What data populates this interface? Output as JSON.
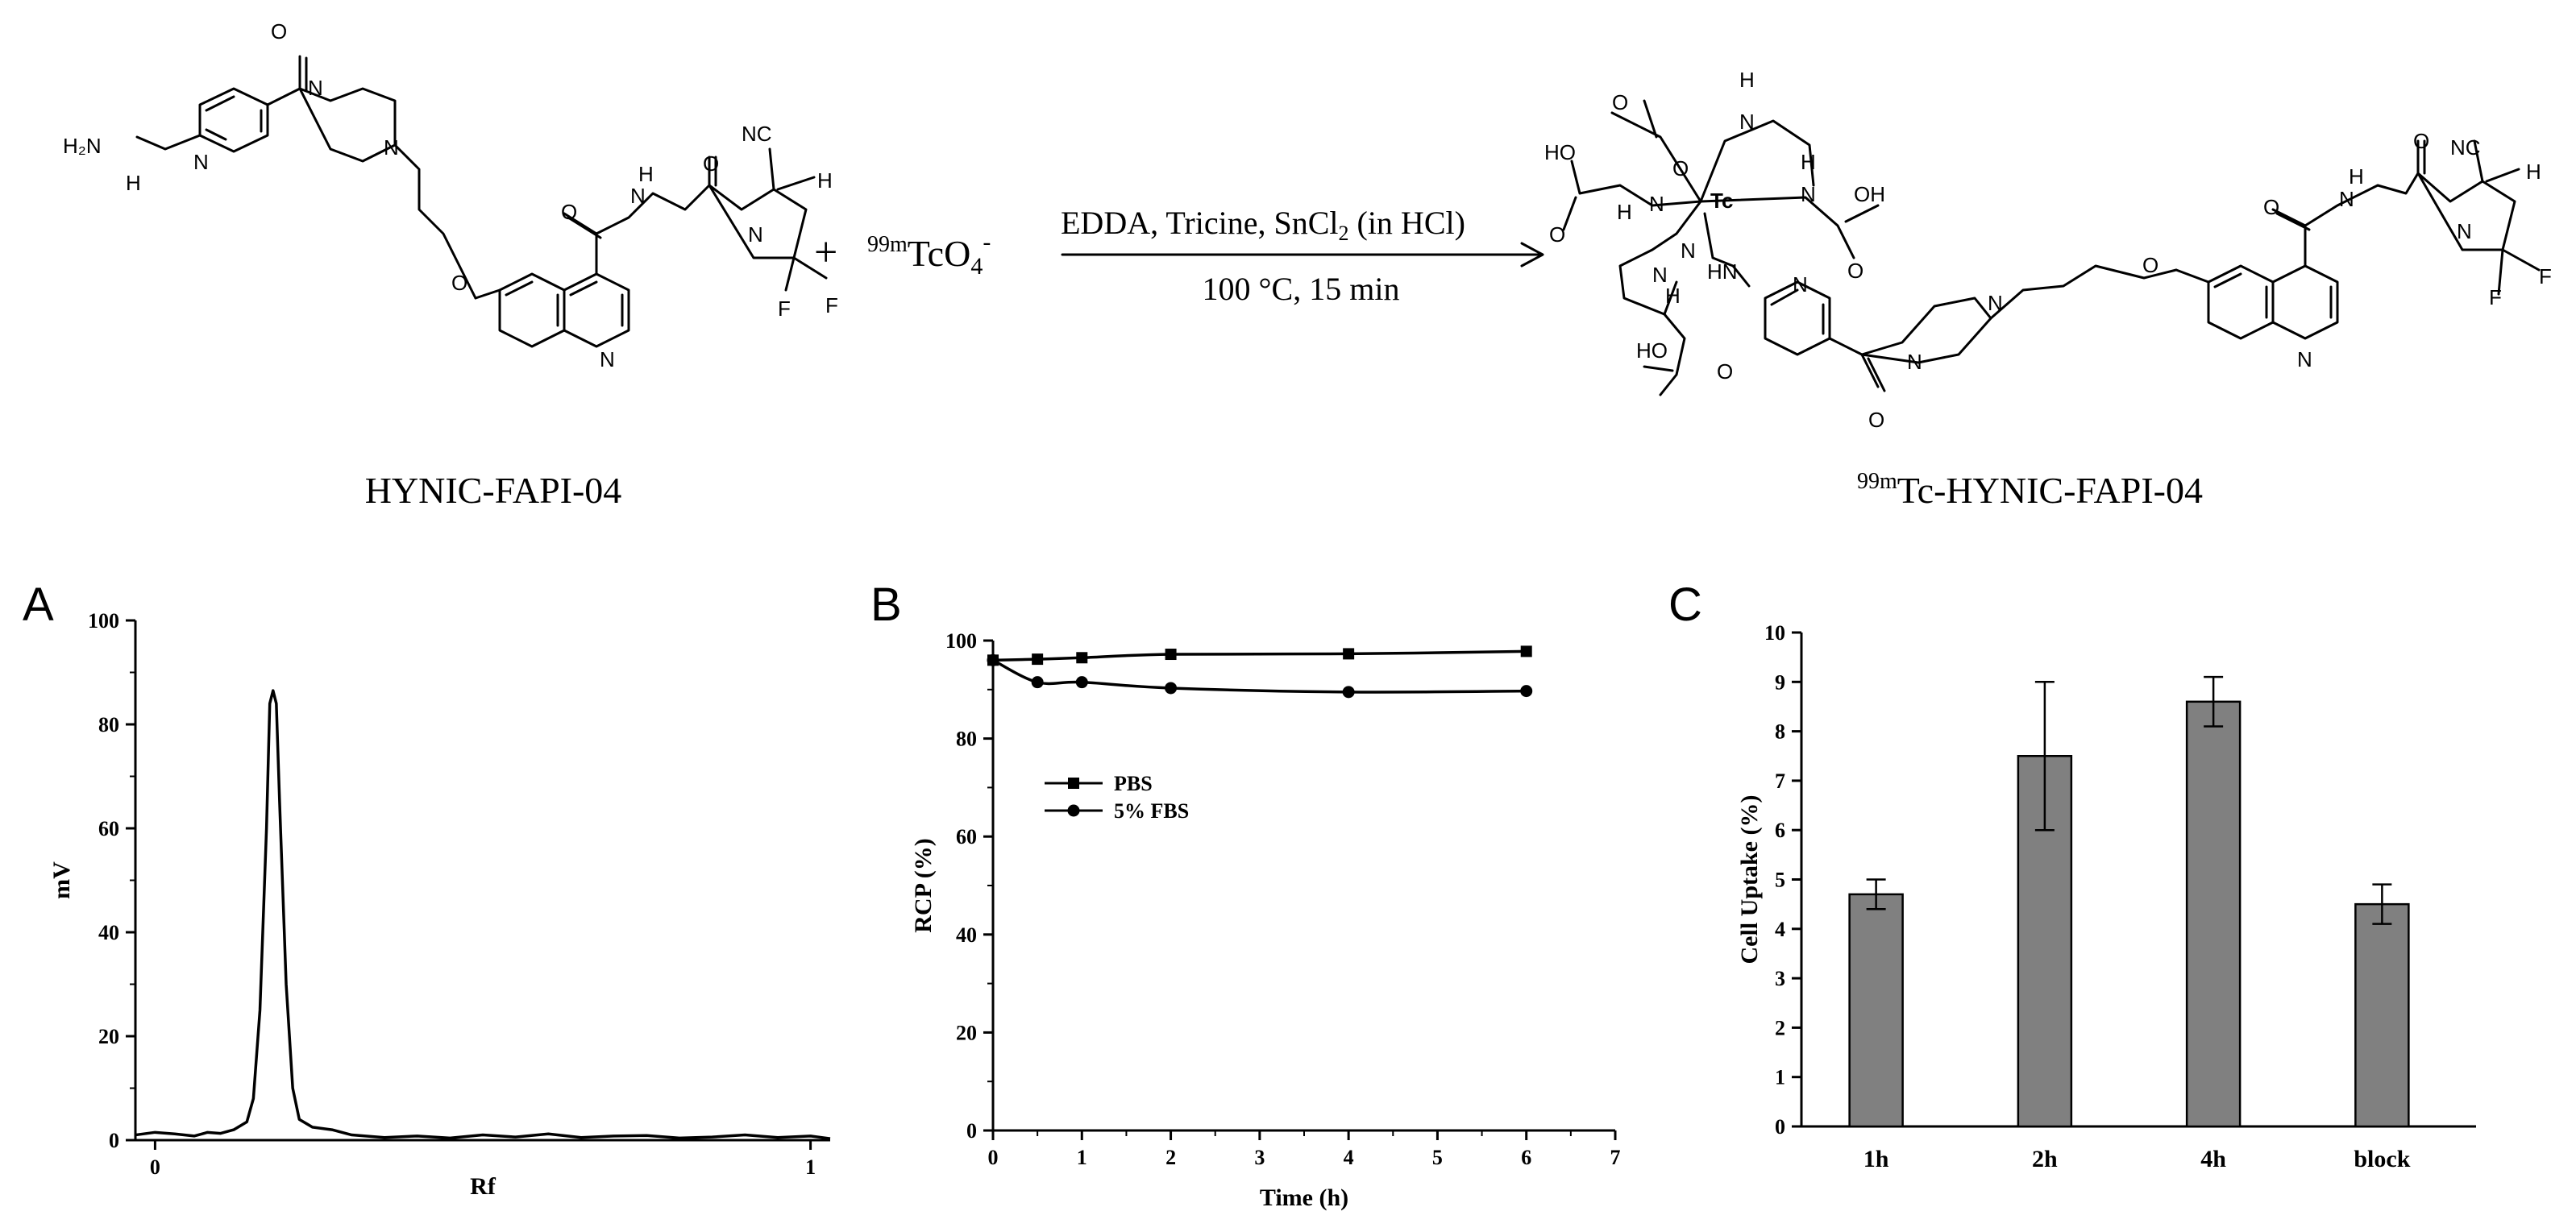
{
  "scheme": {
    "reactant_label": "HYNIC-FAPI-04",
    "reagent": {
      "mass": "99m",
      "formula_main": "TcO",
      "formula_sub": "4",
      "charge": "-"
    },
    "plus_sign": "+",
    "conditions_top": {
      "prefix": "EDDA, Tricine, SnCl",
      "sub": "2",
      "suffix": " (in HCl)"
    },
    "conditions_bottom": "100 °C, 15 min",
    "product_label": {
      "mass": "99m",
      "name": "Tc-HYNIC-FAPI-04"
    },
    "atoms": {
      "h2n": "H₂N",
      "n": "N",
      "h": "H",
      "o": "O",
      "f": "F",
      "nc": "NC",
      "tc": "Tc",
      "ho": "HO",
      "oh": "OH",
      "hn": "HN"
    }
  },
  "chart_data": [
    {
      "panel": "A",
      "type": "line",
      "title": "",
      "xlabel": "Rf",
      "ylabel": "mV",
      "xlim": [
        -0.03,
        1.03
      ],
      "ylim": [
        0,
        100
      ],
      "xticks": [
        0,
        1
      ],
      "yticks": [
        0,
        20,
        40,
        60,
        80,
        100
      ],
      "series": [
        {
          "x": [
            -0.03,
            0.0,
            0.03,
            0.06,
            0.08,
            0.1,
            0.12,
            0.14,
            0.15,
            0.16,
            0.17,
            0.175,
            0.18,
            0.185,
            0.19,
            0.2,
            0.21,
            0.22,
            0.24,
            0.27,
            0.3,
            0.35,
            0.4,
            0.45,
            0.5,
            0.55,
            0.6,
            0.65,
            0.7,
            0.75,
            0.8,
            0.85,
            0.9,
            0.95,
            1.0,
            1.03
          ],
          "y": [
            1,
            1.5,
            1.2,
            0.8,
            1.5,
            1.3,
            2.0,
            3.5,
            8,
            25,
            60,
            84,
            86.5,
            84,
            65,
            30,
            10,
            4,
            2.5,
            2.0,
            1.0,
            0.5,
            0.8,
            0.4,
            1.0,
            0.6,
            1.2,
            0.5,
            0.8,
            0.9,
            0.4,
            0.6,
            1.0,
            0.5,
            0.8,
            0.3
          ]
        }
      ]
    },
    {
      "panel": "B",
      "type": "line",
      "title": "",
      "xlabel": "Time (h)",
      "ylabel": "RCP (%)",
      "xlim": [
        0,
        7
      ],
      "ylim": [
        0,
        100
      ],
      "xticks": [
        0,
        1,
        2,
        3,
        4,
        5,
        6,
        7
      ],
      "yticks": [
        0,
        20,
        40,
        60,
        80,
        100
      ],
      "legend": "top-left",
      "series": [
        {
          "name": "PBS",
          "marker": "square",
          "x": [
            0,
            0.5,
            1,
            2,
            4,
            6
          ],
          "y": [
            96,
            96.2,
            96.5,
            97.2,
            97.3,
            97.8
          ]
        },
        {
          "name": "5% FBS",
          "marker": "circle",
          "x": [
            0,
            0.5,
            1,
            2,
            4,
            6
          ],
          "y": [
            96,
            91.5,
            91.5,
            90.3,
            89.5,
            89.7
          ]
        }
      ]
    },
    {
      "panel": "C",
      "type": "bar",
      "title": "",
      "xlabel": "",
      "ylabel": "Cell Uptake (%)",
      "ylim": [
        0,
        10
      ],
      "yticks": [
        0,
        1,
        2,
        3,
        4,
        5,
        6,
        7,
        8,
        9,
        10
      ],
      "categories": [
        "1h",
        "2h",
        "4h",
        "block"
      ],
      "values": [
        4.7,
        7.5,
        8.6,
        4.5
      ],
      "errors": [
        0.3,
        1.5,
        0.5,
        0.4
      ],
      "colors": {
        "bar": "#808080",
        "edge": "#000000"
      }
    }
  ]
}
